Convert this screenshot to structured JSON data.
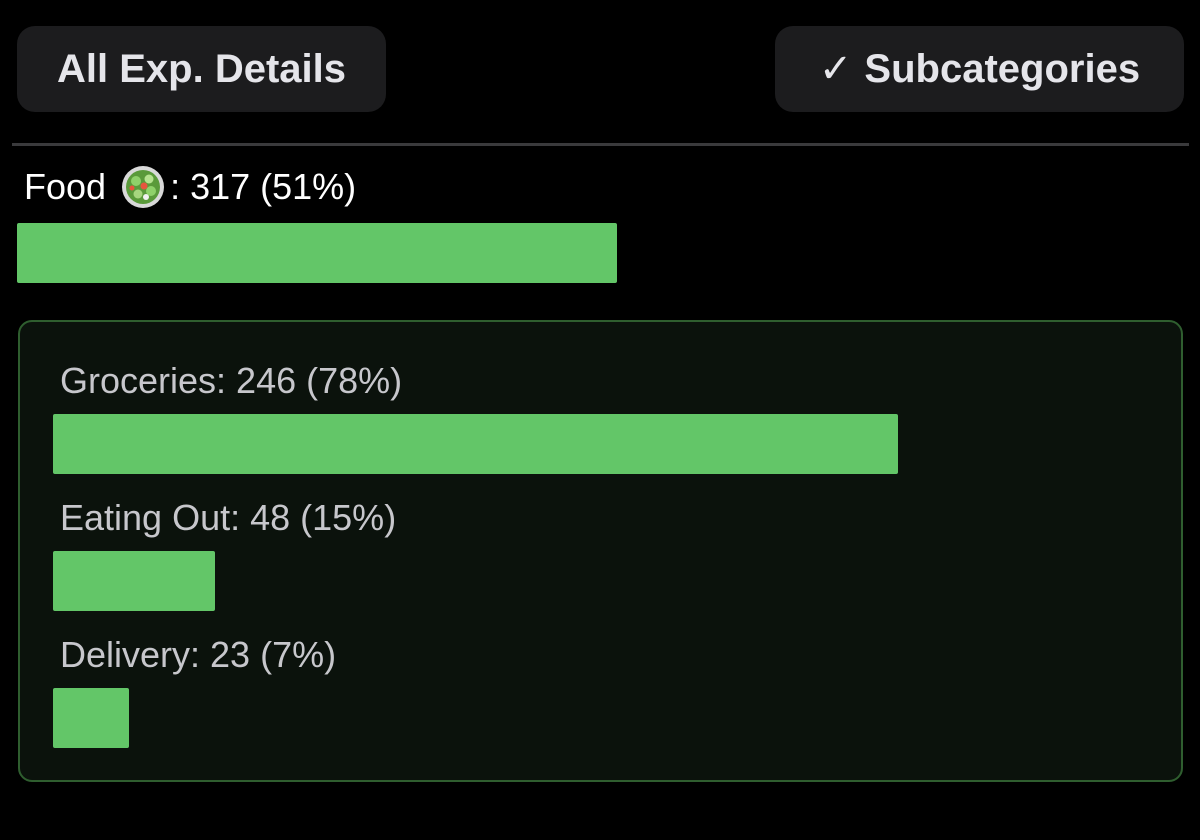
{
  "header": {
    "all_details_label": "All Exp. Details",
    "subcategories_check": "✓",
    "subcategories_label": "Subcategories"
  },
  "category": {
    "name": "Food",
    "icon": "salad-bowl-icon",
    "value_text": ": 317 (51%)",
    "amount": 317,
    "percent": 51,
    "bar_fraction": 0.51
  },
  "subcategories": [
    {
      "label": "Groceries: 246 (78%)",
      "amount": 246,
      "percent": 78
    },
    {
      "label": "Eating Out: 48 (15%)",
      "amount": 48,
      "percent": 15
    },
    {
      "label": "Delivery: 23 (7%)",
      "amount": 23,
      "percent": 7
    }
  ],
  "colors": {
    "bar": "#63c668",
    "panel_border": "#2f5e2f",
    "button_bg": "#1c1c1e"
  }
}
